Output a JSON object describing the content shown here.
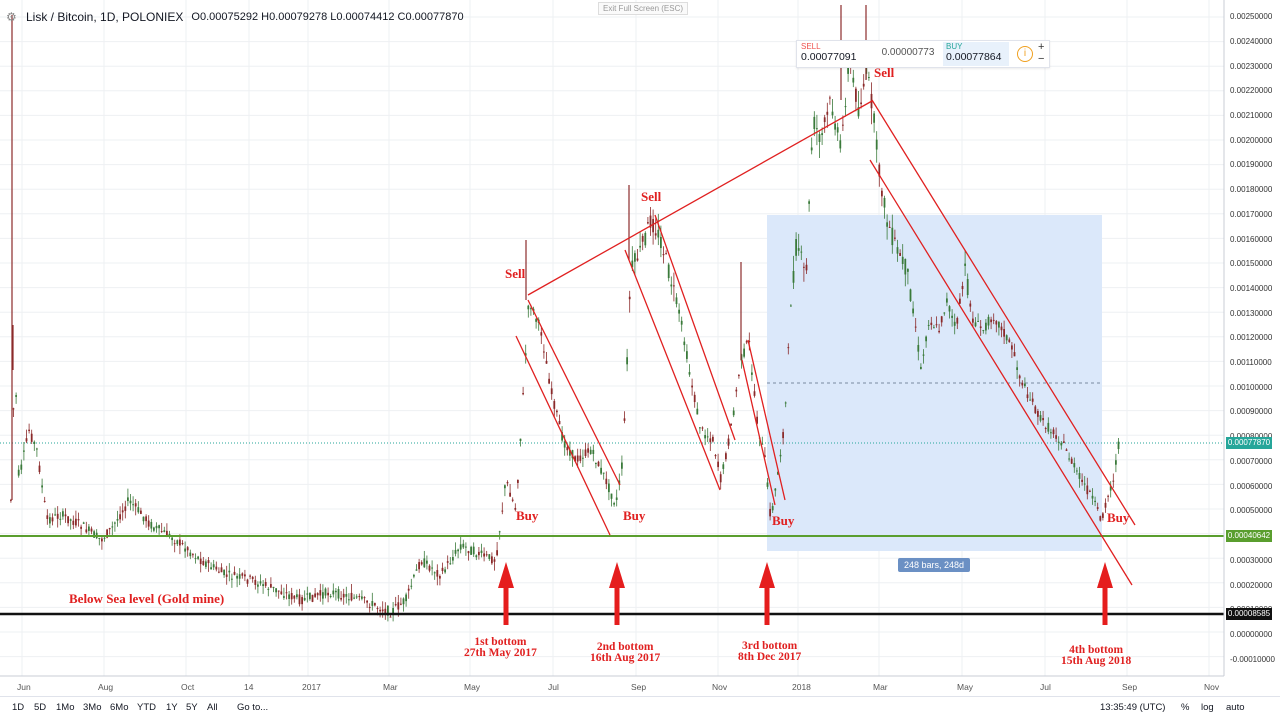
{
  "header": {
    "symbol": "Lisk / Bitcoin, 1D, POLONIEX",
    "open": "O0.00075292",
    "high": "H0.00079278",
    "low": "L0.00074412",
    "close": "C0.00077870"
  },
  "exit_fullscreen": "Exit Full Screen (ESC)",
  "trade_panel": {
    "sell_label": "SELL",
    "sell_price": "0.00077091",
    "spread": "0.00000773",
    "buy_label": "BUY",
    "buy_price": "0.00077864",
    "plus": "+",
    "minus": "−"
  },
  "price_axis": [
    "0.00250000",
    "0.00240000",
    "0.00230000",
    "0.00220000",
    "0.00210000",
    "0.00200000",
    "0.00190000",
    "0.00180000",
    "0.00170000",
    "0.00160000",
    "0.00150000",
    "0.00140000",
    "0.00130000",
    "0.00120000",
    "0.00110000",
    "0.00100000",
    "0.00090000",
    "0.00080000",
    "0.00070000",
    "0.00060000",
    "0.00050000",
    "0.00030000",
    "0.00020000",
    "0.00010000",
    "0.00000000",
    "-0.00010000"
  ],
  "price_tags": {
    "last": "0.00077870",
    "green_level": "0.00040642",
    "black_level": "0.00008585"
  },
  "time_axis": [
    "Jun",
    "Aug",
    "Oct",
    "14",
    "2017",
    "Mar",
    "May",
    "Jul",
    "Sep",
    "Nov",
    "2018",
    "Mar",
    "May",
    "Jul",
    "Sep",
    "Nov"
  ],
  "annotations": {
    "sells": [
      "Sell",
      "Sell",
      "Sell"
    ],
    "buys": [
      "Buy",
      "Buy",
      "Buy",
      "Buy"
    ],
    "bottoms": [
      {
        "line1": "1st bottom",
        "line2": "27th May 2017"
      },
      {
        "line1": "2nd bottom",
        "line2": "16th Aug 2017"
      },
      {
        "line1": "3rd bottom",
        "line2": "8th Dec 2017"
      },
      {
        "line1": "4th bottom",
        "line2": "15th Aug 2018"
      }
    ],
    "sea_level": "Below Sea level (Gold mine)",
    "bars_badge": "248 bars, 248d"
  },
  "bottom_bar": {
    "timeframes": [
      "1D",
      "5D",
      "1Mo",
      "3Mo",
      "6Mo",
      "YTD",
      "1Y",
      "5Y",
      "All"
    ],
    "goto": "Go to...",
    "clock": "13:35:49 (UTC)",
    "percent": "%",
    "log": "log",
    "auto": "auto"
  },
  "colors": {
    "annotation": "#e02020",
    "support_line": "#5a9e2e",
    "candle_up": "#3a7a3a",
    "candle_down": "#8b2a2a",
    "range_box": "#dbe8fa",
    "last_price": "#26a69a"
  }
}
